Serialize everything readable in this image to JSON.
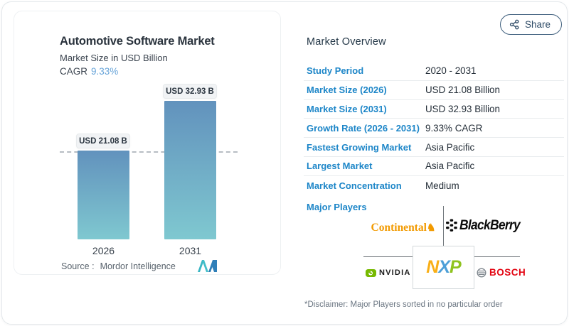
{
  "share": {
    "label": "Share"
  },
  "chart_card": {
    "title": "Automotive Software Market",
    "subtitle": "Market Size in USD Billion",
    "cagr_label": "CAGR",
    "cagr_value": "9.33%",
    "source_label": "Source :",
    "source_value": "Mordor Intelligence"
  },
  "chart_data": {
    "type": "bar",
    "categories": [
      "2026",
      "2031"
    ],
    "values": [
      21.08,
      32.93
    ],
    "bar_labels": [
      "USD 21.08 B",
      "USD 32.93 B"
    ],
    "title": "Automotive Software Market",
    "ylabel": "Market Size in USD Billion",
    "cagr": "9.33%",
    "reference_line": 21.08,
    "ylim": [
      0,
      32.93
    ],
    "grid": false,
    "legend": false
  },
  "overview": {
    "title": "Market Overview",
    "rows": [
      {
        "label": "Study Period",
        "value": "2020 - 2031"
      },
      {
        "label": "Market Size (2026)",
        "value": "USD 21.08 Billion"
      },
      {
        "label": "Market Size (2031)",
        "value": "USD 32.93 Billion"
      },
      {
        "label": "Growth Rate (2026 - 2031)",
        "value": "9.33% CAGR"
      },
      {
        "label": "Fastest Growing Market",
        "value": "Asia Pacific"
      },
      {
        "label": "Largest Market",
        "value": "Asia Pacific"
      },
      {
        "label": "Market Concentration",
        "value": "Medium"
      }
    ],
    "major_players_label": "Major Players",
    "disclaimer": "*Disclaimer: Major Players sorted in no particular order"
  },
  "players": {
    "continental": {
      "name": "Continental"
    },
    "blackberry": {
      "name": "BlackBerry"
    },
    "nvidia": {
      "name": "NVIDIA"
    },
    "nxp": {
      "name": "NXP",
      "letters": [
        "N",
        "X",
        "P"
      ]
    },
    "bosch": {
      "name": "BOSCH"
    }
  },
  "colors": {
    "label_blue": "#1d86c8",
    "value_dark": "#242e38",
    "cagr_blue": "#69a5d9",
    "bar_top": "#6292bd",
    "bar_bottom": "#7fc8d0",
    "continental_orange": "#f29a00",
    "nvidia_green": "#76b900",
    "bosch_red": "#e30613",
    "nxp_orange": "#f9af17",
    "nxp_blue": "#4d9fd8",
    "nxp_green": "#8fc31f"
  }
}
